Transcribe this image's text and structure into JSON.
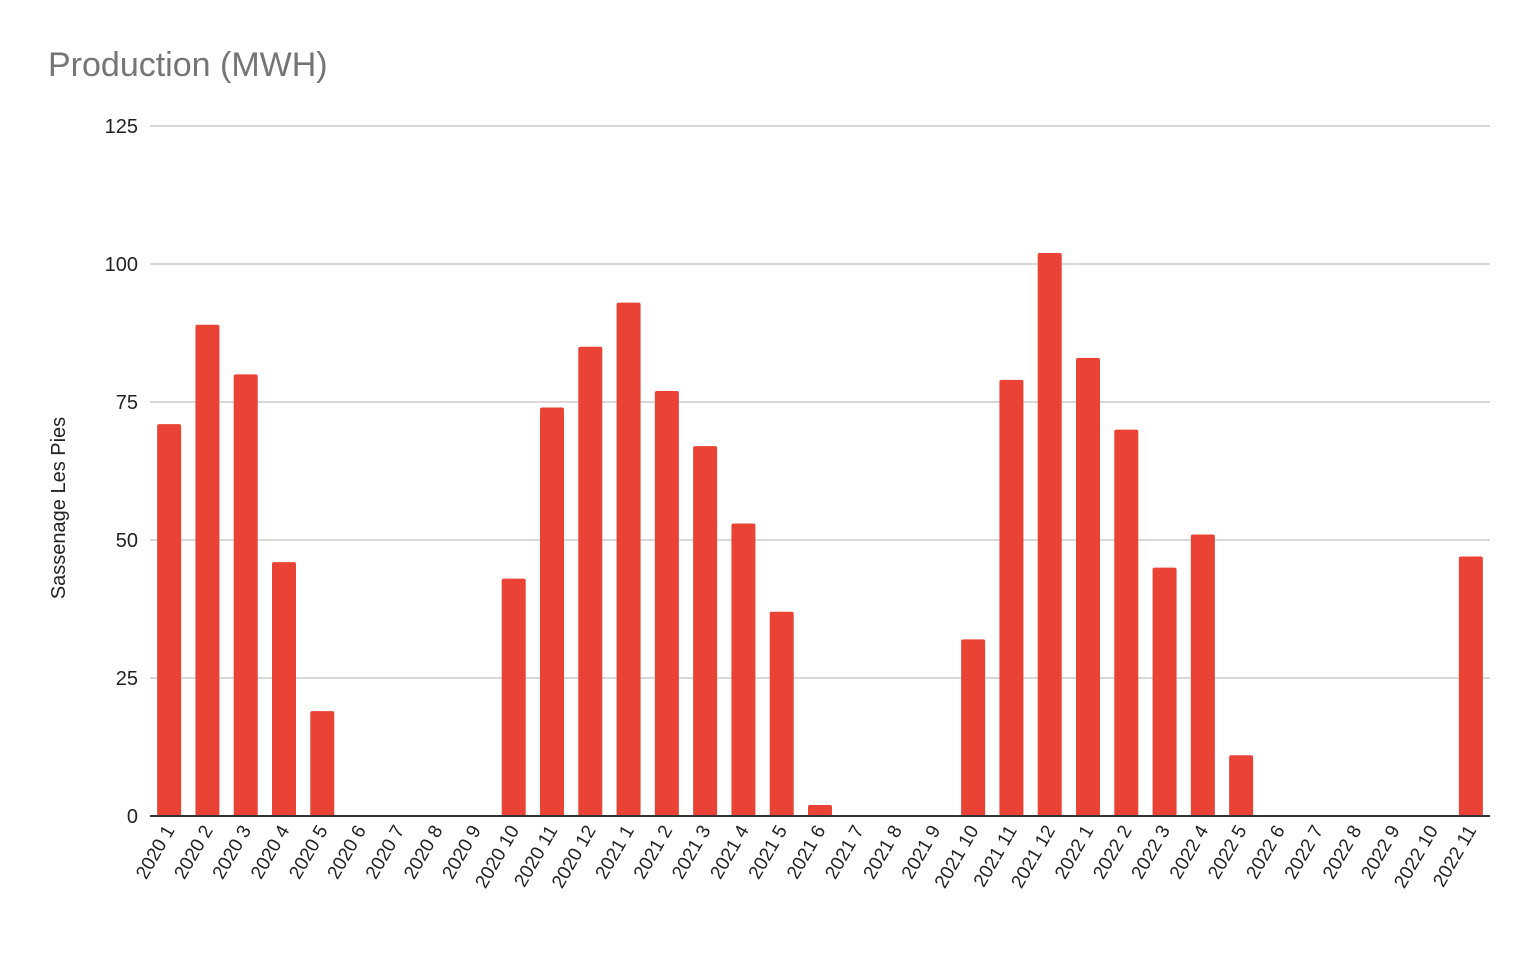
{
  "chart_data": {
    "type": "bar",
    "title": "Production (MWH)",
    "xlabel": "",
    "ylabel": "Sassenage Les Pies",
    "ylim": [
      0,
      125
    ],
    "yticks": [
      0,
      25,
      50,
      75,
      100,
      125
    ],
    "grid": true,
    "legend": "none",
    "bar_color": "#ea4335",
    "categories": [
      "2020 1",
      "2020 2",
      "2020 3",
      "2020 4",
      "2020 5",
      "2020 6",
      "2020 7",
      "2020 8",
      "2020 9",
      "2020 10",
      "2020 11",
      "2020 12",
      "2021 1",
      "2021 2",
      "2021 3",
      "2021 4",
      "2021 5",
      "2021 6",
      "2021 7",
      "2021 8",
      "2021 9",
      "2021 10",
      "2021 11",
      "2021 12",
      "2022 1",
      "2022 2",
      "2022 3",
      "2022 4",
      "2022 5",
      "2022 6",
      "2022 7",
      "2022 8",
      "2022 9",
      "2022 10",
      "2022 11"
    ],
    "values": [
      71,
      89,
      80,
      46,
      19,
      0,
      0,
      0,
      0,
      43,
      74,
      85,
      93,
      77,
      67,
      53,
      37,
      2,
      0,
      0,
      0,
      32,
      79,
      102,
      83,
      70,
      45,
      51,
      11,
      0,
      0,
      0,
      0,
      0,
      47
    ]
  }
}
